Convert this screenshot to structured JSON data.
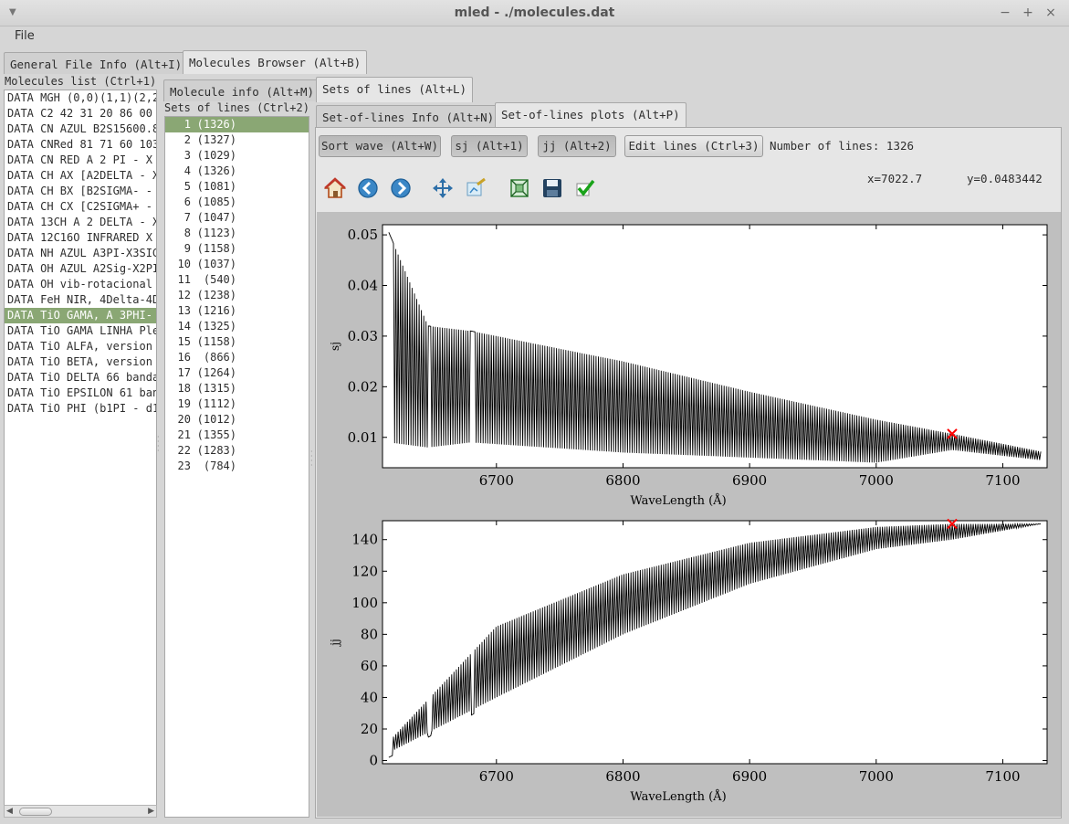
{
  "window": {
    "title": "mled - ./molecules.dat",
    "minimize": "−",
    "maximize": "+",
    "close": "×",
    "menu_glyph": "▼"
  },
  "menu": {
    "file": "File"
  },
  "main_tabs": [
    {
      "label": "General File Info (Alt+I)"
    },
    {
      "label": "Molecules Browser (Alt+B)"
    }
  ],
  "molecules": {
    "header": "Molecules list (Ctrl+1)",
    "items": [
      "DATA MGH (0,0)(1,1)(2,2",
      "DATA C2 42 31 20 86 00",
      "DATA CN AZUL B2S15600.8",
      "DATA CNRed 81 71 60 103",
      "DATA CN RED A 2 PI - X",
      "DATA CH AX [A2DELTA - X",
      "DATA CH BX [B2SIGMA- -",
      "DATA CH CX [C2SIGMA+ -",
      "DATA 13CH A 2 DELTA - X",
      "DATA 12C16O INFRARED  X",
      "DATA NH AZUL A3PI-X3SIG",
      "DATA OH AZUL A2Sig-X2PI",
      "DATA OH vib-rotacional",
      "DATA FeH NIR, 4Delta-4D",
      "DATA TiO GAMA, A 3PHI-",
      "DATA TiO GAMA LINHA Ple",
      "DATA TiO ALFA, version",
      "DATA TiO BETA, version",
      "DATA TiO DELTA 66 banda",
      "DATA TiO EPSILON 61 ban",
      "DATA TiO PHI (b1PI - d1"
    ],
    "selected_index": 14
  },
  "mol_tabs": [
    {
      "label": "Molecule info (Alt+M)"
    },
    {
      "label": "Sets of lines (Alt+L)"
    }
  ],
  "sets": {
    "header": "Sets of lines (Ctrl+2)",
    "items": [
      {
        "n": "1",
        "count": "(1326)"
      },
      {
        "n": "2",
        "count": "(1327)"
      },
      {
        "n": "3",
        "count": "(1029)"
      },
      {
        "n": "4",
        "count": "(1326)"
      },
      {
        "n": "5",
        "count": "(1081)"
      },
      {
        "n": "6",
        "count": "(1085)"
      },
      {
        "n": "7",
        "count": "(1047)"
      },
      {
        "n": "8",
        "count": "(1123)"
      },
      {
        "n": "9",
        "count": "(1158)"
      },
      {
        "n": "10",
        "count": "(1037)"
      },
      {
        "n": "11",
        "count": "(540)"
      },
      {
        "n": "12",
        "count": "(1238)"
      },
      {
        "n": "13",
        "count": "(1216)"
      },
      {
        "n": "14",
        "count": "(1325)"
      },
      {
        "n": "15",
        "count": "(1158)"
      },
      {
        "n": "16",
        "count": "(866)"
      },
      {
        "n": "17",
        "count": "(1264)"
      },
      {
        "n": "18",
        "count": "(1315)"
      },
      {
        "n": "19",
        "count": "(1112)"
      },
      {
        "n": "20",
        "count": "(1012)"
      },
      {
        "n": "21",
        "count": "(1355)"
      },
      {
        "n": "22",
        "count": "(1283)"
      },
      {
        "n": "23",
        "count": "(784)"
      }
    ],
    "selected_index": 0
  },
  "sol_tabs": [
    {
      "label": "Set-of-lines Info (Alt+N)"
    },
    {
      "label": "Set-of-lines plots (Alt+P)"
    }
  ],
  "plot_controls": {
    "sort_wave": "Sort wave (Alt+W)",
    "sj": "sj (Alt+1)",
    "jj": "jj (Alt+2)",
    "edit_lines": "Edit lines (Ctrl+3)",
    "num_lines": "Number of lines: 1326"
  },
  "toolbar": {
    "icons": [
      "home-icon",
      "back-icon",
      "forward-icon",
      "pan-icon",
      "configure-subplots-icon",
      "zoom-icon",
      "save-icon",
      "check-icon"
    ],
    "cursor_x": "x=7022.7",
    "cursor_y": "y=0.0483442"
  },
  "colors": {
    "selection": "#8aa774",
    "marker": "#ff0000",
    "plot_bg": "#bfbfbf"
  },
  "chart_data": [
    {
      "type": "line",
      "title": "",
      "xlabel": "WaveLength (Å)",
      "ylabel": "sj",
      "xlim": [
        6610,
        7135
      ],
      "ylim": [
        0.004,
        0.052
      ],
      "xticks": [
        6700,
        6800,
        6900,
        7000,
        7100
      ],
      "yticks": [
        0.01,
        0.02,
        0.03,
        0.04,
        0.05
      ],
      "ytick_labels": [
        "0.01",
        "0.02",
        "0.03",
        "0.04",
        "0.05"
      ],
      "band_heads": [
        6615,
        6646,
        6680
      ],
      "series": [
        {
          "envelope_upper": [
            [
              6615,
              0.0505
            ],
            [
              6646,
              0.032
            ],
            [
              6680,
              0.031
            ],
            [
              6800,
              0.025
            ],
            [
              6900,
              0.019
            ],
            [
              7000,
              0.0135
            ],
            [
              7060,
              0.0107
            ],
            [
              7130,
              0.0072
            ]
          ],
          "envelope_lower": [
            [
              6615,
              0.009
            ],
            [
              6646,
              0.008
            ],
            [
              6680,
              0.009
            ],
            [
              6800,
              0.007
            ],
            [
              6900,
              0.006
            ],
            [
              7000,
              0.005
            ],
            [
              7060,
              0.0075
            ],
            [
              7130,
              0.0055
            ]
          ]
        }
      ],
      "marker": {
        "x": 7060,
        "y": 0.0107
      }
    },
    {
      "type": "line",
      "title": "",
      "xlabel": "WaveLength (Å)",
      "ylabel": "jj",
      "xlim": [
        6610,
        7135
      ],
      "ylim": [
        -2,
        152
      ],
      "xticks": [
        6700,
        6800,
        6900,
        7000,
        7100
      ],
      "yticks": [
        0,
        20,
        40,
        60,
        80,
        100,
        120,
        140
      ],
      "ytick_labels": [
        "0",
        "20",
        "40",
        "60",
        "80",
        "100",
        "120",
        "140"
      ],
      "band_heads": [
        6615,
        6646,
        6680
      ],
      "series": [
        {
          "envelope_upper": [
            [
              6615,
              12
            ],
            [
              6700,
              85
            ],
            [
              6800,
              118
            ],
            [
              6900,
              138
            ],
            [
              7000,
              148
            ],
            [
              7060,
              150
            ],
            [
              7130,
              150
            ]
          ],
          "envelope_lower": [
            [
              6615,
              5
            ],
            [
              6700,
              40
            ],
            [
              6800,
              80
            ],
            [
              6900,
              112
            ],
            [
              7000,
              134
            ],
            [
              7060,
              140
            ],
            [
              7130,
              150
            ]
          ]
        }
      ],
      "marker": {
        "x": 7060,
        "y": 150
      }
    }
  ]
}
